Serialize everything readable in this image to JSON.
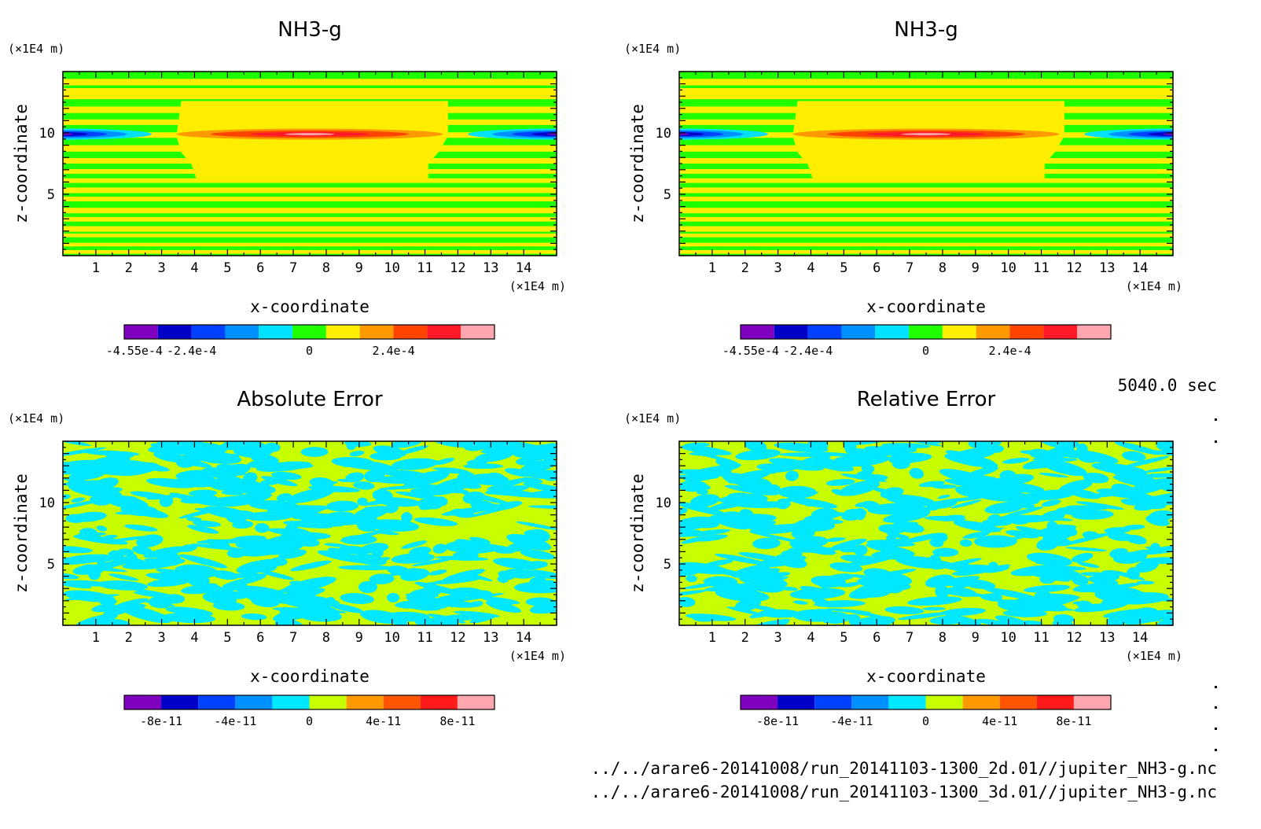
{
  "time_label": "5040.0 sec",
  "files": [
    "../../arare6-20141008/run_20141103-1300_2d.01//jupiter_NH3-g.nc",
    "../../arare6-20141008/run_20141103-1300_3d.01//jupiter_NH3-g.nc"
  ],
  "chart_data": [
    {
      "type": "heatmap",
      "title": "NH3-g",
      "xlabel": "x-coordinate",
      "ylabel": "z-coordinate",
      "x_unit": "(×1E4 m)",
      "y_unit": "(×1E4 m)",
      "xlim": [
        0,
        15
      ],
      "ylim": [
        0,
        15
      ],
      "x_ticks": [
        1,
        2,
        3,
        4,
        5,
        6,
        7,
        8,
        9,
        10,
        11,
        12,
        13,
        14
      ],
      "y_ticks": [
        5,
        10
      ],
      "colorbar": {
        "colors": [
          "#7f00bf",
          "#0000c8",
          "#0040ff",
          "#0090ff",
          "#00e0ff",
          "#20ff00",
          "#ffee00",
          "#ff9900",
          "#ff4400",
          "#ff1a2a",
          "#ffa6b0"
        ],
        "tick_labels": [
          "-4.55e-4",
          "-2.4e-4",
          "0",
          "2.4e-4"
        ]
      }
    },
    {
      "type": "heatmap",
      "title": "NH3-g",
      "xlabel": "x-coordinate",
      "ylabel": "z-coordinate",
      "x_unit": "(×1E4 m)",
      "y_unit": "(×1E4 m)",
      "xlim": [
        0,
        15
      ],
      "ylim": [
        0,
        15
      ],
      "x_ticks": [
        1,
        2,
        3,
        4,
        5,
        6,
        7,
        8,
        9,
        10,
        11,
        12,
        13,
        14
      ],
      "y_ticks": [
        5,
        10
      ],
      "colorbar": {
        "colors": [
          "#7f00bf",
          "#0000c8",
          "#0040ff",
          "#0090ff",
          "#00e0ff",
          "#20ff00",
          "#ffee00",
          "#ff9900",
          "#ff4400",
          "#ff1a2a",
          "#ffa6b0"
        ],
        "tick_labels": [
          "-4.55e-4",
          "-2.4e-4",
          "0",
          "2.4e-4"
        ]
      }
    },
    {
      "type": "heatmap",
      "title": "Absolute Error",
      "xlabel": "x-coordinate",
      "ylabel": "z-coordinate",
      "x_unit": "(×1E4 m)",
      "y_unit": "(×1E4 m)",
      "xlim": [
        0,
        15
      ],
      "ylim": [
        0,
        15
      ],
      "x_ticks": [
        1,
        2,
        3,
        4,
        5,
        6,
        7,
        8,
        9,
        10,
        11,
        12,
        13,
        14
      ],
      "y_ticks": [
        5,
        10
      ],
      "colorbar": {
        "colors": [
          "#7f00bf",
          "#0000c8",
          "#0040ff",
          "#0090ff",
          "#00e8ff",
          "#c8ff00",
          "#ff9900",
          "#ff5500",
          "#ff1a1a",
          "#ffa6b0"
        ],
        "tick_labels": [
          "-8e-11",
          "-4e-11",
          "0",
          "4e-11",
          "8e-11"
        ]
      }
    },
    {
      "type": "heatmap",
      "title": "Relative Error",
      "xlabel": "x-coordinate",
      "ylabel": "z-coordinate",
      "x_unit": "(×1E4 m)",
      "y_unit": "(×1E4 m)",
      "xlim": [
        0,
        15
      ],
      "ylim": [
        0,
        15
      ],
      "x_ticks": [
        1,
        2,
        3,
        4,
        5,
        6,
        7,
        8,
        9,
        10,
        11,
        12,
        13,
        14
      ],
      "y_ticks": [
        5,
        10
      ],
      "colorbar": {
        "colors": [
          "#7f00bf",
          "#0000c8",
          "#0040ff",
          "#0090ff",
          "#00e8ff",
          "#c8ff00",
          "#ff9900",
          "#ff5500",
          "#ff1a1a",
          "#ffa6b0"
        ],
        "tick_labels": [
          "-8e-11",
          "-4e-11",
          "0",
          "4e-11",
          "8e-11"
        ]
      }
    }
  ]
}
